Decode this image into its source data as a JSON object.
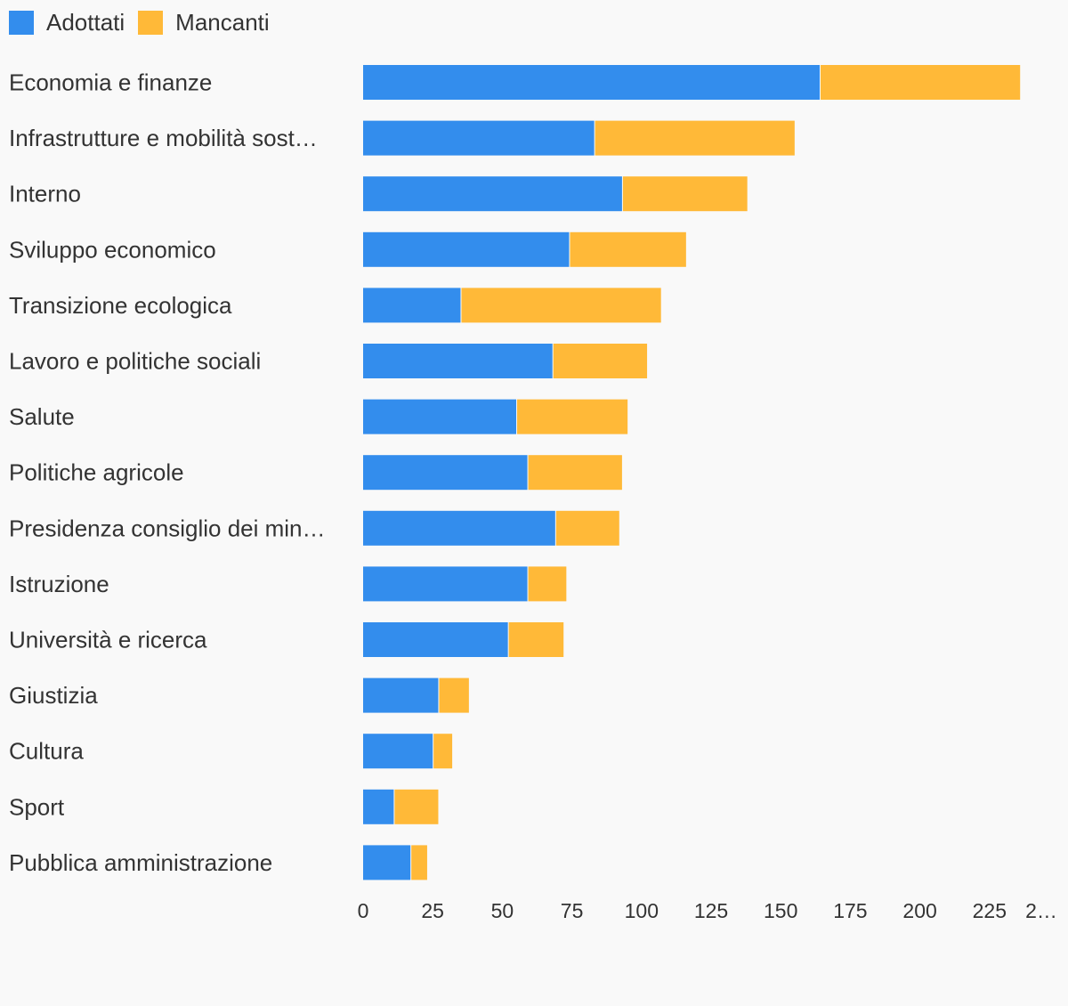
{
  "chart_data": {
    "type": "bar",
    "orientation": "horizontal",
    "stacked": true,
    "title": "",
    "xlabel": "",
    "ylabel": "",
    "xlim": [
      0,
      250
    ],
    "grid": false,
    "legend_position": "top-left",
    "categories": [
      "Economia e finanze",
      "Infrastrutture e mobilità sost…",
      "Interno",
      "Sviluppo economico",
      "Transizione ecologica",
      "Lavoro e politiche sociali",
      "Salute",
      "Politiche agricole",
      "Presidenza consiglio dei min…",
      "Istruzione",
      "Università e ricerca",
      "Giustizia",
      "Cultura",
      "Sport",
      "Pubblica amministrazione"
    ],
    "series": [
      {
        "name": "Adottati",
        "color": "#338ded",
        "values": [
          164,
          83,
          93,
          74,
          35,
          68,
          55,
          59,
          69,
          59,
          52,
          27,
          25,
          11,
          17
        ]
      },
      {
        "name": "Mancanti",
        "color": "#ffb938",
        "values": [
          72,
          72,
          45,
          42,
          72,
          34,
          40,
          34,
          23,
          14,
          20,
          11,
          7,
          16,
          6
        ]
      }
    ],
    "x_ticks": [
      "0",
      "25",
      "50",
      "75",
      "100",
      "125",
      "150",
      "175",
      "200",
      "225",
      "2…"
    ],
    "x_tick_values": [
      0,
      25,
      50,
      75,
      100,
      125,
      150,
      175,
      200,
      225,
      250
    ]
  }
}
